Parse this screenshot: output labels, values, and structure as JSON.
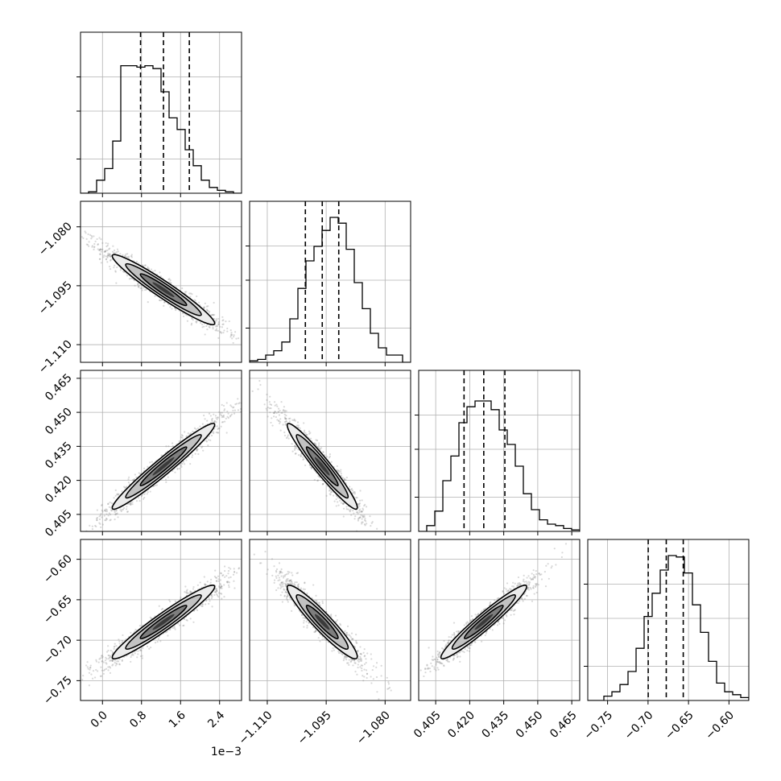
{
  "chart_data": {
    "type": "corner",
    "parameters": [
      {
        "ticks": [
          "0.0",
          "0.8",
          "1.6",
          "2.4"
        ],
        "tick_values": [
          0.0,
          0.8,
          1.6,
          2.4
        ],
        "range": [
          -0.45,
          2.85
        ],
        "offset_text": "1e−3"
      },
      {
        "ticks": [
          "−1.110",
          "−1.095",
          "−1.080"
        ],
        "tick_values": [
          -1.11,
          -1.095,
          -1.08
        ],
        "range": [
          -1.1145,
          -1.0735
        ]
      },
      {
        "ticks": [
          "0.405",
          "0.420",
          "0.435",
          "0.450",
          "0.465"
        ],
        "tick_values": [
          0.405,
          0.42,
          0.435,
          0.45,
          0.465
        ],
        "range": [
          0.3975,
          0.4685
        ]
      },
      {
        "ticks": [
          "−0.75",
          "−0.70",
          "−0.65",
          "−0.60"
        ],
        "tick_values": [
          -0.75,
          -0.7,
          -0.65,
          -0.6
        ],
        "range": [
          -0.7745,
          -0.5755
        ]
      }
    ],
    "quantiles": [
      [
        0.78,
        1.25,
        1.78
      ],
      [
        -1.1003,
        -1.096,
        -1.0918
      ],
      [
        0.4175,
        0.4262,
        0.4355
      ],
      [
        -0.6998,
        -0.6775,
        -0.6565
      ]
    ],
    "histograms": [
      [
        0.0,
        0.01,
        0.09,
        0.17,
        0.36,
        0.88,
        0.88,
        0.87,
        0.88,
        0.86,
        0.7,
        0.52,
        0.44,
        0.3,
        0.19,
        0.09,
        0.04,
        0.02,
        0.01,
        0.0
      ],
      [
        0.01,
        0.02,
        0.05,
        0.08,
        0.14,
        0.3,
        0.51,
        0.7,
        0.8,
        0.91,
        1.0,
        0.96,
        0.78,
        0.55,
        0.37,
        0.2,
        0.1,
        0.05,
        0.05,
        0.0
      ],
      [
        0.0,
        0.04,
        0.14,
        0.35,
        0.52,
        0.75,
        0.86,
        0.9,
        0.9,
        0.84,
        0.7,
        0.6,
        0.45,
        0.26,
        0.15,
        0.08,
        0.05,
        0.04,
        0.02,
        0.01
      ],
      [
        0.0,
        0.0,
        0.03,
        0.06,
        0.11,
        0.2,
        0.36,
        0.58,
        0.74,
        0.9,
        1.0,
        0.99,
        0.88,
        0.66,
        0.47,
        0.27,
        0.12,
        0.06,
        0.04,
        0.02
      ]
    ],
    "correlations": {
      "1_0": -0.96,
      "2_0": 0.97,
      "2_1": -0.96,
      "3_0": 0.96,
      "3_1": -0.94,
      "3_2": 0.96
    },
    "grid": true,
    "colors": {
      "samples": "#808080",
      "contour": "#000000",
      "quantile_line": "#000000",
      "grid": "#b0b0b0"
    }
  }
}
